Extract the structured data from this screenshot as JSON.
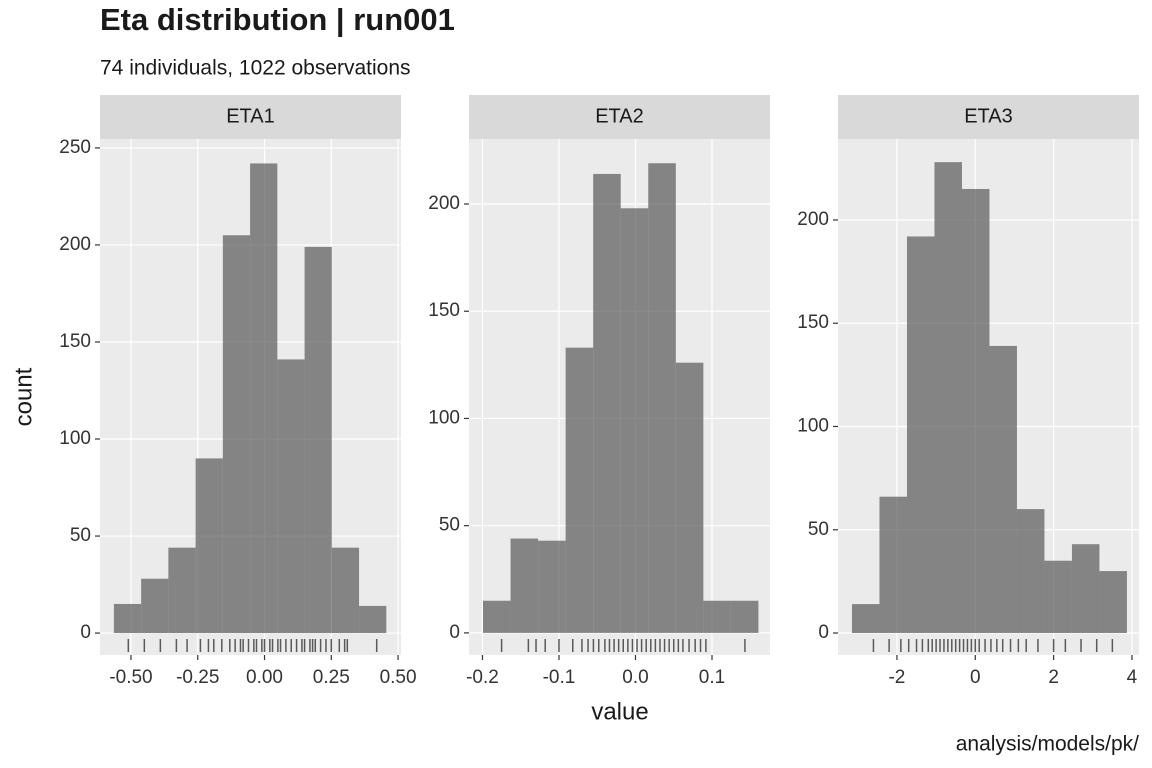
{
  "chart_data": {
    "type": "histogram",
    "title": "Eta distribution | run001",
    "subtitle": "74 individuals, 1022 observations",
    "xlabel": "value",
    "ylabel": "count",
    "caption": "analysis/models/pk/",
    "color": "#595959",
    "alpha": 0.7,
    "panel_background": "#ebebeb",
    "strip_background": "#d9d9d9",
    "grid": true,
    "panels": [
      {
        "strip": "ETA1",
        "bins": [
          -0.564,
          -0.462,
          -0.36,
          -0.258,
          -0.156,
          -0.054,
          0.048,
          0.15,
          0.252,
          0.354,
          0.456
        ],
        "counts": [
          15,
          28,
          44,
          90,
          205,
          242,
          141,
          199,
          44,
          14
        ],
        "rug": [
          -0.51,
          -0.45,
          -0.39,
          -0.33,
          -0.29,
          -0.24,
          -0.21,
          -0.19,
          -0.16,
          -0.13,
          -0.11,
          -0.09,
          -0.08,
          -0.06,
          -0.04,
          -0.03,
          -0.01,
          0.0,
          0.02,
          0.03,
          0.05,
          0.06,
          0.08,
          0.1,
          0.12,
          0.14,
          0.15,
          0.17,
          0.18,
          0.19,
          0.21,
          0.23,
          0.25,
          0.28,
          0.3,
          0.31,
          0.42
        ],
        "xlim": [
          -0.616,
          0.511
        ],
        "ylim": [
          -11.3,
          254.6
        ],
        "xticks": [
          {
            "value": -0.5,
            "label": "-0.50"
          },
          {
            "value": -0.25,
            "label": "-0.25"
          },
          {
            "value": 0,
            "label": "0.00"
          },
          {
            "value": 0.25,
            "label": "0.25"
          },
          {
            "value": 0.5,
            "label": "0.50"
          }
        ],
        "yticks": [
          0,
          50,
          100,
          150,
          200,
          250
        ]
      },
      {
        "strip": "ETA2",
        "bins": [
          -0.1993,
          -0.1633,
          -0.1273,
          -0.0913,
          -0.0553,
          -0.0193,
          0.0167,
          0.0527,
          0.0887,
          0.1247,
          0.1607
        ],
        "counts": [
          15,
          44,
          43,
          133,
          214,
          198,
          219,
          126,
          15,
          15
        ],
        "rug": [
          -0.175,
          -0.14,
          -0.13,
          -0.118,
          -0.1,
          -0.082,
          -0.07,
          -0.062,
          -0.055,
          -0.048,
          -0.04,
          -0.034,
          -0.028,
          -0.022,
          -0.016,
          -0.01,
          -0.004,
          0.002,
          0.008,
          0.014,
          0.02,
          0.026,
          0.032,
          0.038,
          0.044,
          0.05,
          0.056,
          0.062,
          0.07,
          0.078,
          0.085,
          0.092,
          0.143
        ],
        "xlim": [
          -0.2176,
          0.1758
        ],
        "ylim": [
          -10.3,
          230.3
        ],
        "xticks": [
          -0.2,
          -0.1,
          {
            "value": 0,
            "label": "0.0"
          },
          0.1
        ],
        "yticks": [
          0,
          50,
          100,
          150,
          200
        ]
      },
      {
        "strip": "ETA3",
        "bins": [
          -3.148,
          -2.446,
          -1.744,
          -1.042,
          -0.34,
          0.362,
          1.064,
          1.766,
          2.468,
          3.17,
          3.872
        ],
        "counts": [
          14,
          66,
          192,
          228,
          215,
          139,
          60,
          35,
          43,
          30
        ],
        "rug": [
          -2.6,
          -2.2,
          -1.9,
          -1.7,
          -1.5,
          -1.35,
          -1.2,
          -1.1,
          -1.0,
          -0.9,
          -0.8,
          -0.7,
          -0.6,
          -0.5,
          -0.4,
          -0.3,
          -0.2,
          -0.1,
          0.0,
          0.1,
          0.25,
          0.4,
          0.55,
          0.7,
          0.9,
          1.1,
          1.3,
          1.6,
          2.0,
          2.3,
          2.7,
          3.1,
          3.5
        ],
        "xlim": [
          -3.505,
          4.18
        ],
        "ylim": [
          -10.65,
          239.2
        ],
        "xticks": [
          -2,
          0,
          2,
          4
        ],
        "yticks": [
          0,
          50,
          100,
          150,
          200
        ]
      }
    ]
  }
}
